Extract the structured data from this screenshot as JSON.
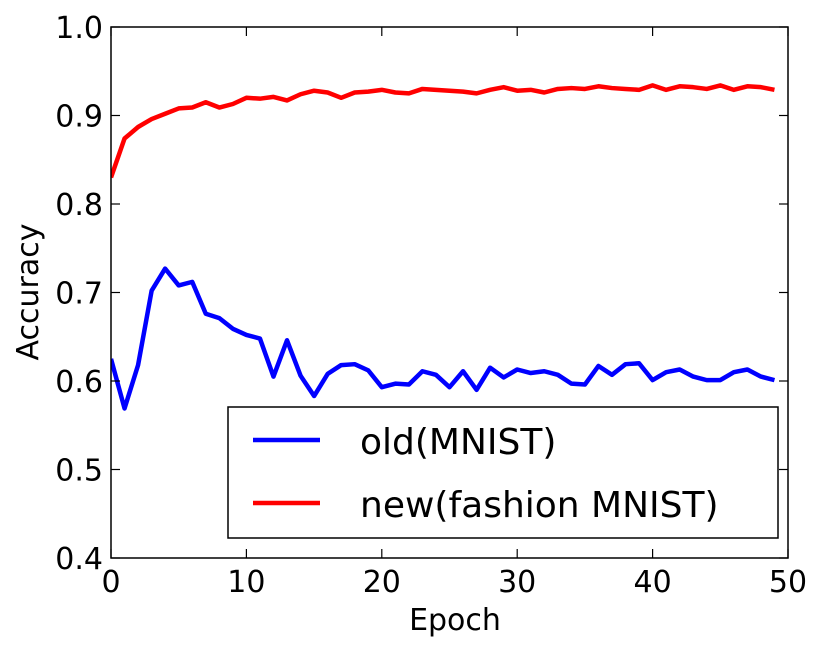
{
  "chart_data": {
    "type": "line",
    "title": "",
    "xlabel": "Epoch",
    "ylabel": "Accuracy",
    "xlim": [
      0,
      50
    ],
    "ylim": [
      0.4,
      1.0
    ],
    "xticks": [
      0,
      10,
      20,
      30,
      40,
      50
    ],
    "yticks": [
      0.4,
      0.5,
      0.6,
      0.7,
      0.8,
      0.9,
      1.0
    ],
    "xtick_labels": [
      "0",
      "10",
      "20",
      "30",
      "40",
      "50"
    ],
    "ytick_labels": [
      "0.4",
      "0.5",
      "0.6",
      "0.7",
      "0.8",
      "0.9",
      "1.0"
    ],
    "grid": false,
    "legend_position": "lower-right",
    "x": [
      0,
      1,
      2,
      3,
      4,
      5,
      6,
      7,
      8,
      9,
      10,
      11,
      12,
      13,
      14,
      15,
      16,
      17,
      18,
      19,
      20,
      21,
      22,
      23,
      24,
      25,
      26,
      27,
      28,
      29,
      30,
      31,
      32,
      33,
      34,
      35,
      36,
      37,
      38,
      39,
      40,
      41,
      42,
      43,
      44,
      45,
      46,
      47,
      48,
      49
    ],
    "series": [
      {
        "name": "old(MNIST)",
        "color": "#0000ff",
        "values": [
          0.625,
          0.569,
          0.618,
          0.702,
          0.727,
          0.708,
          0.712,
          0.676,
          0.671,
          0.659,
          0.652,
          0.648,
          0.605,
          0.646,
          0.606,
          0.583,
          0.608,
          0.618,
          0.619,
          0.612,
          0.593,
          0.597,
          0.596,
          0.611,
          0.607,
          0.593,
          0.611,
          0.59,
          0.615,
          0.604,
          0.613,
          0.609,
          0.611,
          0.607,
          0.597,
          0.596,
          0.617,
          0.607,
          0.619,
          0.62,
          0.601,
          0.61,
          0.613,
          0.605,
          0.601,
          0.601,
          0.61,
          0.613,
          0.605,
          0.601
        ]
      },
      {
        "name": "new(fashion MNIST)",
        "color": "#ff0000",
        "values": [
          0.83,
          0.874,
          0.887,
          0.896,
          0.902,
          0.908,
          0.909,
          0.915,
          0.909,
          0.913,
          0.92,
          0.919,
          0.921,
          0.917,
          0.924,
          0.928,
          0.926,
          0.92,
          0.926,
          0.927,
          0.929,
          0.926,
          0.925,
          0.93,
          0.929,
          0.928,
          0.927,
          0.925,
          0.929,
          0.932,
          0.928,
          0.929,
          0.926,
          0.93,
          0.931,
          0.93,
          0.933,
          0.931,
          0.93,
          0.929,
          0.934,
          0.929,
          0.933,
          0.932,
          0.93,
          0.934,
          0.929,
          0.933,
          0.932,
          0.929
        ]
      }
    ]
  }
}
